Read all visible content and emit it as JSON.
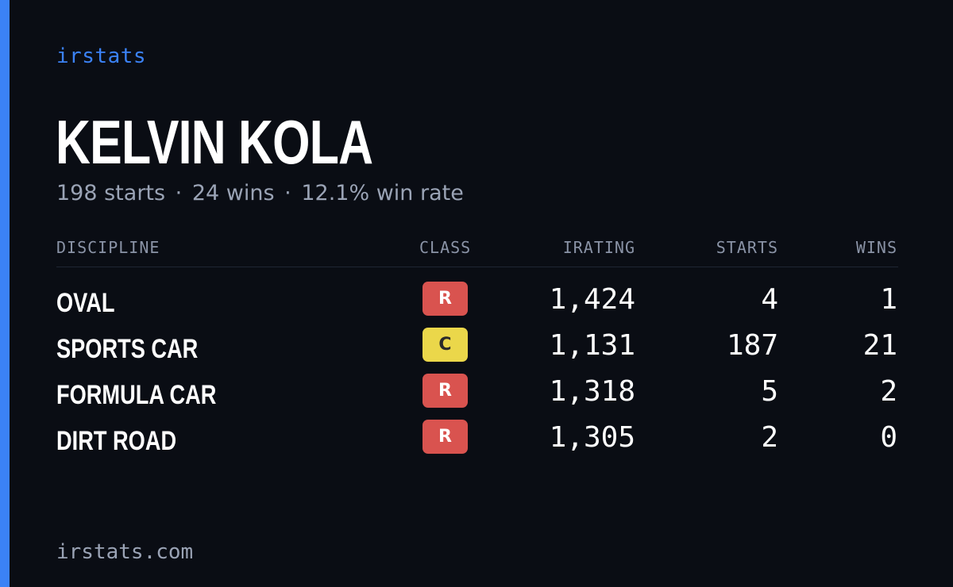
{
  "brand": "irstats",
  "driver": {
    "name": "KELVIN KOLA",
    "starts_text": "198 starts",
    "wins_text": "24 wins",
    "win_rate_text": "12.1% win rate",
    "separator": "·"
  },
  "table": {
    "headers": {
      "discipline": "DISCIPLINE",
      "class": "CLASS",
      "irating": "IRATING",
      "starts": "STARTS",
      "wins": "WINS"
    },
    "rows": [
      {
        "discipline": "OVAL",
        "class": "R",
        "irating": "1,424",
        "starts": "4",
        "wins": "1"
      },
      {
        "discipline": "SPORTS CAR",
        "class": "C",
        "irating": "1,131",
        "starts": "187",
        "wins": "21"
      },
      {
        "discipline": "FORMULA CAR",
        "class": "R",
        "irating": "1,318",
        "starts": "5",
        "wins": "2"
      },
      {
        "discipline": "DIRT ROAD",
        "class": "R",
        "irating": "1,305",
        "starts": "2",
        "wins": "0"
      }
    ]
  },
  "footer": "irstats.com",
  "colors": {
    "accent": "#3b82f6",
    "background": "#0a0d14",
    "class_R": "#d9534f",
    "class_C": "#ebd74a"
  }
}
